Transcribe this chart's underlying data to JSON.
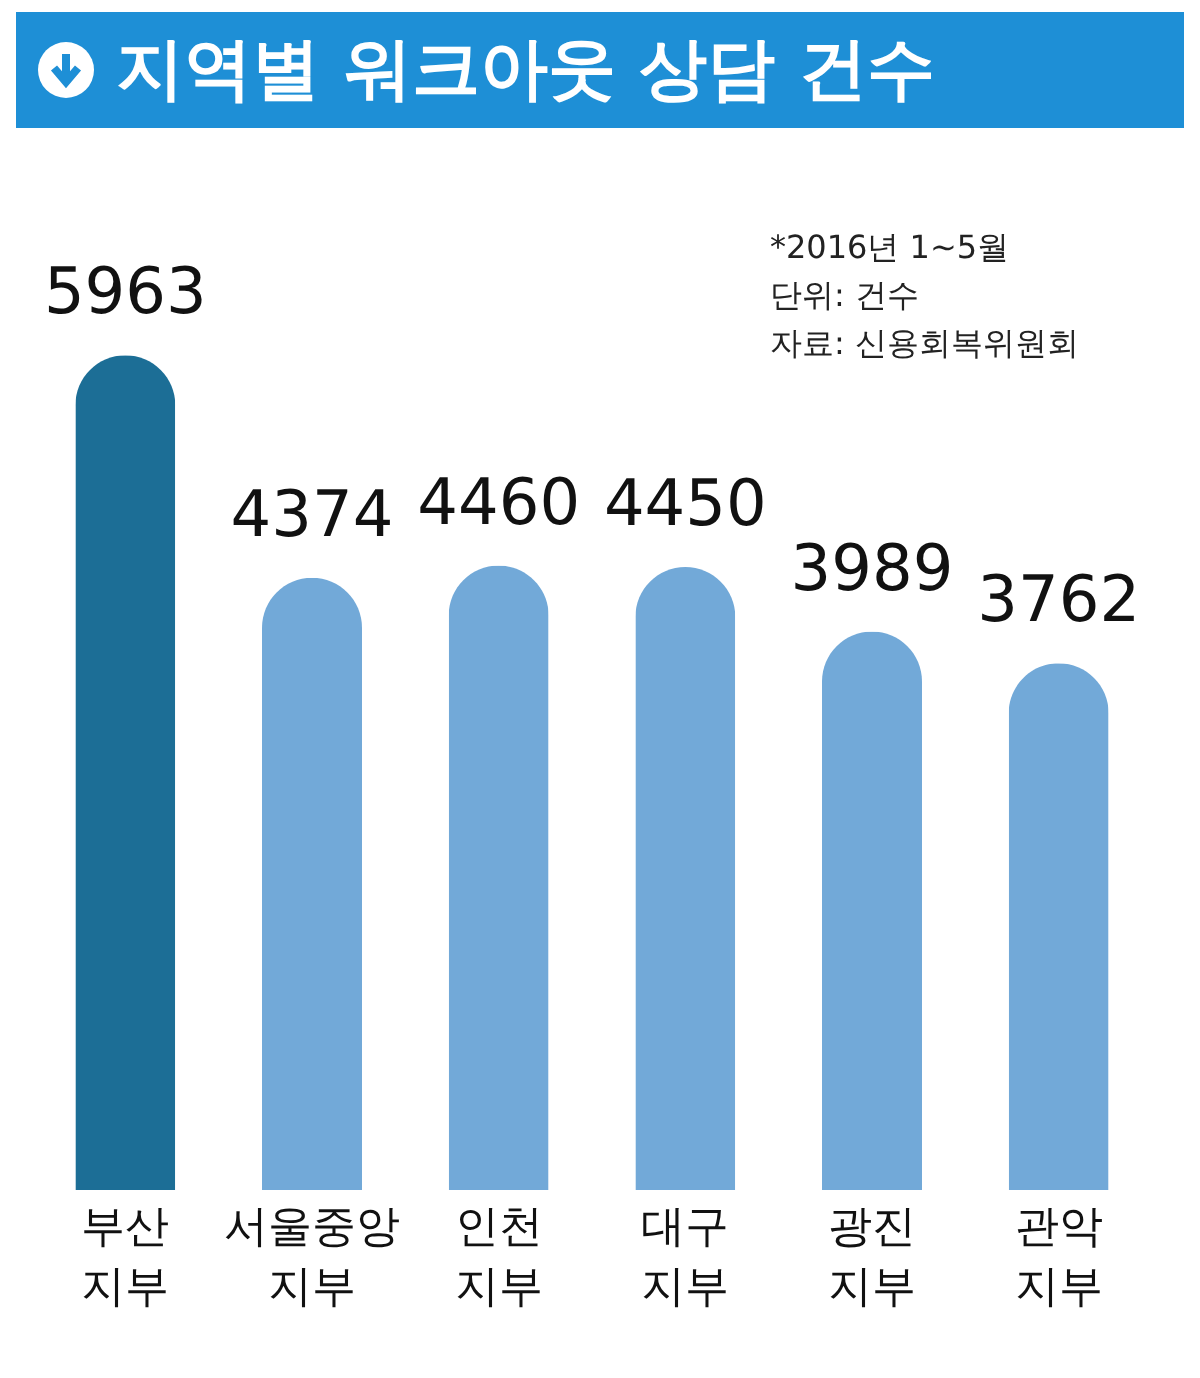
{
  "chart_data": {
    "type": "bar",
    "title": "지역별 워크아웃 상담 건수",
    "categories": [
      "부산 지부",
      "서울중앙 지부",
      "인천 지부",
      "대구 지부",
      "광진 지부",
      "관악 지부"
    ],
    "values": [
      5963,
      4374,
      4460,
      4450,
      3989,
      3762
    ],
    "colors": [
      "#1c6e96",
      "#72a9d8",
      "#72a9d8",
      "#72a9d8",
      "#72a9d8",
      "#72a9d8"
    ],
    "data_labels": true,
    "annotations": [
      "*2016년 1~5월",
      "단위: 건수",
      "자료: 신용회복위원회"
    ]
  }
}
